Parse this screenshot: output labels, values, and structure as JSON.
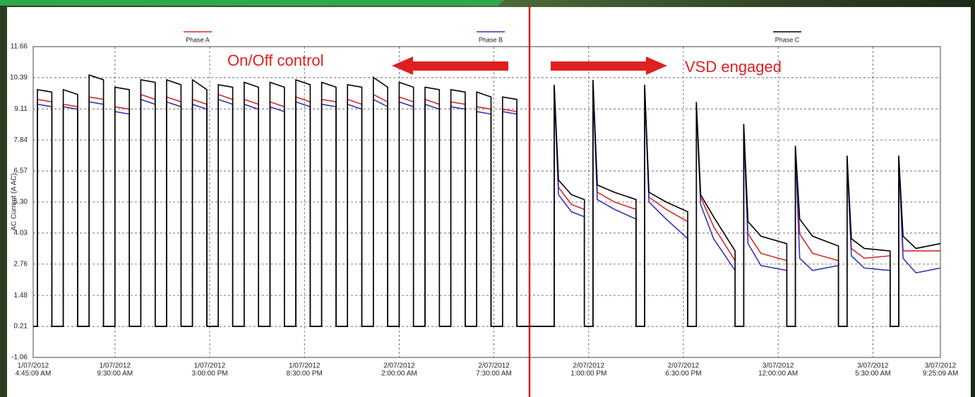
{
  "chart_data": {
    "type": "line",
    "ylabel": "AC Current (A AC)",
    "annotations": [
      "On/Off control",
      "VSD engaged"
    ],
    "annotation_color": "#e02020",
    "grid": true,
    "ylim": [
      -1.06,
      11.66
    ],
    "yticks": [
      -1.06,
      0.21,
      1.48,
      2.76,
      4.03,
      {
        "value": 5.3,
        "label": "5.30"
      },
      6.57,
      7.84,
      9.11,
      10.39,
      11.66
    ],
    "xlim": [
      "2012-07-01T04:45:09",
      "2012-07-03T09:25:09"
    ],
    "xticks": [
      {
        "value": "2012-07-01T04:45:09",
        "label": [
          "1/07/2012",
          "4:45:09 AM"
        ]
      },
      {
        "value": "2012-07-01T09:30:00",
        "label": [
          "1/07/2012",
          "9:30:00 AM"
        ]
      },
      {
        "value": "2012-07-01T15:00:00",
        "label": [
          "1/07/2012",
          "3:00:00 PM"
        ]
      },
      {
        "value": "2012-07-01T20:30:00",
        "label": [
          "1/07/2012",
          "8:30:00 PM"
        ]
      },
      {
        "value": "2012-07-02T02:00:00",
        "label": [
          "2/07/2012",
          "2:00:00 AM"
        ]
      },
      {
        "value": "2012-07-02T07:30:00",
        "label": [
          "2/07/2012",
          "7:30:00 AM"
        ]
      },
      {
        "value": "2012-07-02T13:00:00",
        "label": [
          "2/07/2012",
          "1:00:00 PM"
        ]
      },
      {
        "value": "2012-07-02T18:30:00",
        "label": [
          "2/07/2012",
          "6:30:00 PM"
        ]
      },
      {
        "value": "2012-07-03T00:00:00",
        "label": [
          "3/07/2012",
          "12:00:00 AM"
        ]
      },
      {
        "value": "2012-07-03T05:30:00",
        "label": [
          "3/07/2012",
          "5:30:00 AM"
        ]
      },
      {
        "value": "2012-07-03T09:25:09",
        "label": [
          "3/07/2012",
          "9:25:09 AM"
        ]
      }
    ],
    "x": [
      "2012-07-01T04:45:09",
      "2012-07-01T05:00",
      "2012-07-01T05:00",
      "2012-07-01T05:50",
      "2012-07-01T05:50",
      "2012-07-01T06:30",
      "2012-07-01T06:30",
      "2012-07-01T07:20",
      "2012-07-01T07:20",
      "2012-07-01T08:00",
      "2012-07-01T08:00",
      "2012-07-01T08:50",
      "2012-07-01T08:50",
      "2012-07-01T09:30",
      "2012-07-01T09:30",
      "2012-07-01T10:20",
      "2012-07-01T10:20",
      "2012-07-01T11:00",
      "2012-07-01T11:00",
      "2012-07-01T11:50",
      "2012-07-01T11:50",
      "2012-07-01T12:30",
      "2012-07-01T12:30",
      "2012-07-01T13:20",
      "2012-07-01T13:20",
      "2012-07-01T14:00",
      "2012-07-01T14:00",
      "2012-07-01T14:50",
      "2012-07-01T14:50",
      "2012-07-01T15:30",
      "2012-07-01T15:30",
      "2012-07-01T16:20",
      "2012-07-01T16:20",
      "2012-07-01T17:00",
      "2012-07-01T17:00",
      "2012-07-01T17:50",
      "2012-07-01T17:50",
      "2012-07-01T18:30",
      "2012-07-01T18:30",
      "2012-07-01T19:20",
      "2012-07-01T19:20",
      "2012-07-01T20:00",
      "2012-07-01T20:00",
      "2012-07-01T20:50",
      "2012-07-01T20:50",
      "2012-07-01T21:30",
      "2012-07-01T21:30",
      "2012-07-01T22:20",
      "2012-07-01T22:20",
      "2012-07-01T23:00",
      "2012-07-01T23:00",
      "2012-07-01T23:50",
      "2012-07-01T23:50",
      "2012-07-02T00:30",
      "2012-07-02T00:30",
      "2012-07-02T01:20",
      "2012-07-02T01:20",
      "2012-07-02T02:00",
      "2012-07-02T02:00",
      "2012-07-02T02:50",
      "2012-07-02T02:50",
      "2012-07-02T03:30",
      "2012-07-02T03:30",
      "2012-07-02T04:20",
      "2012-07-02T04:20",
      "2012-07-02T05:00",
      "2012-07-02T05:00",
      "2012-07-02T05:50",
      "2012-07-02T05:50",
      "2012-07-02T06:30",
      "2012-07-02T06:30",
      "2012-07-02T07:20",
      "2012-07-02T07:20",
      "2012-07-02T08:00",
      "2012-07-02T08:00",
      "2012-07-02T08:50",
      "2012-07-02T08:50",
      "2012-07-02T11:00",
      "2012-07-02T11:00",
      "2012-07-02T11:15",
      "2012-07-02T12:00",
      "2012-07-02T12:45",
      "2012-07-02T12:45",
      "2012-07-02T13:15",
      "2012-07-02T13:15",
      "2012-07-02T13:30",
      "2012-07-02T14:30",
      "2012-07-02T15:45",
      "2012-07-02T15:45",
      "2012-07-02T16:15",
      "2012-07-02T16:15",
      "2012-07-02T16:30",
      "2012-07-02T17:30",
      "2012-07-02T18:45",
      "2012-07-02T18:45",
      "2012-07-02T19:15",
      "2012-07-02T19:15",
      "2012-07-02T19:30",
      "2012-07-02T20:15",
      "2012-07-02T21:30",
      "2012-07-02T21:30",
      "2012-07-02T22:00",
      "2012-07-02T22:00",
      "2012-07-02T22:15",
      "2012-07-02T23:00",
      "2012-07-03T00:30",
      "2012-07-03T00:30",
      "2012-07-03T01:00",
      "2012-07-03T01:00",
      "2012-07-03T01:15",
      "2012-07-03T02:00",
      "2012-07-03T03:30",
      "2012-07-03T03:30",
      "2012-07-03T04:00",
      "2012-07-03T04:00",
      "2012-07-03T04:15",
      "2012-07-03T05:00",
      "2012-07-03T06:30",
      "2012-07-03T06:30",
      "2012-07-03T07:00",
      "2012-07-03T07:00",
      "2012-07-03T07:15",
      "2012-07-03T08:00",
      "2012-07-03T09:25:09"
    ],
    "series": [
      {
        "name": "Phase A",
        "color": "#d42a2a",
        "values": [
          0.21,
          0.21,
          9.5,
          9.4,
          0.21,
          0.21,
          9.3,
          9.2,
          0.21,
          0.21,
          9.6,
          9.5,
          0.21,
          0.21,
          9.2,
          9.1,
          0.21,
          0.21,
          9.7,
          9.5,
          0.21,
          0.21,
          9.6,
          9.4,
          0.21,
          0.21,
          9.5,
          9.3,
          0.21,
          0.21,
          9.7,
          9.5,
          0.21,
          0.21,
          9.5,
          9.3,
          0.21,
          0.21,
          9.4,
          9.2,
          0.21,
          0.21,
          9.6,
          9.4,
          0.21,
          0.21,
          9.5,
          9.4,
          0.21,
          0.21,
          9.5,
          9.3,
          0.21,
          0.21,
          9.7,
          9.4,
          0.21,
          0.21,
          9.6,
          9.4,
          0.21,
          0.21,
          9.5,
          9.3,
          0.21,
          0.21,
          9.4,
          9.3,
          0.21,
          0.21,
          9.2,
          9.1,
          0.21,
          0.21,
          9.1,
          9.0,
          0.21,
          0.21,
          10.0,
          5.9,
          5.2,
          5.0,
          0.21,
          0.21,
          10.2,
          5.7,
          5.3,
          5.0,
          0.21,
          0.21,
          10.0,
          5.5,
          5.0,
          4.5,
          0.21,
          0.21,
          9.3,
          5.5,
          4.3,
          2.9,
          0.21,
          0.21,
          8.4,
          4.0,
          3.2,
          2.9,
          0.21,
          0.21,
          7.5,
          4.0,
          3.2,
          2.9,
          0.21,
          0.21,
          7.1,
          3.4,
          3.0,
          3.1,
          0.21,
          0.21,
          7.1,
          3.3,
          3.3,
          3.3
        ]
      },
      {
        "name": "Phase B",
        "color": "#3434b4",
        "values": [
          0.21,
          0.21,
          9.3,
          9.2,
          0.21,
          0.21,
          9.2,
          9.1,
          0.21,
          0.21,
          9.4,
          9.3,
          0.21,
          0.21,
          9.0,
          8.9,
          0.21,
          0.21,
          9.5,
          9.3,
          0.21,
          0.21,
          9.4,
          9.2,
          0.21,
          0.21,
          9.3,
          9.1,
          0.21,
          0.21,
          9.5,
          9.3,
          0.21,
          0.21,
          9.3,
          9.1,
          0.21,
          0.21,
          9.2,
          9.0,
          0.21,
          0.21,
          9.4,
          9.2,
          0.21,
          0.21,
          9.3,
          9.2,
          0.21,
          0.21,
          9.3,
          9.1,
          0.21,
          0.21,
          9.5,
          9.2,
          0.21,
          0.21,
          9.4,
          9.2,
          0.21,
          0.21,
          9.3,
          9.1,
          0.21,
          0.21,
          9.2,
          9.1,
          0.21,
          0.21,
          9.0,
          8.9,
          0.21,
          0.21,
          9.0,
          8.9,
          0.21,
          0.21,
          9.9,
          5.6,
          4.9,
          4.7,
          0.21,
          0.21,
          10.1,
          5.4,
          5.0,
          4.6,
          0.21,
          0.21,
          9.9,
          5.3,
          4.6,
          3.8,
          0.21,
          0.21,
          9.2,
          5.2,
          3.8,
          2.5,
          0.21,
          0.21,
          8.3,
          3.6,
          2.7,
          2.5,
          0.21,
          0.21,
          7.4,
          3.0,
          2.5,
          2.7,
          0.21,
          0.21,
          7.0,
          3.1,
          2.6,
          2.5,
          0.21,
          0.21,
          7.0,
          3.0,
          2.4,
          2.6
        ]
      },
      {
        "name": "Phase C",
        "color": "#000000",
        "values": [
          0.21,
          0.21,
          9.9,
          9.8,
          0.21,
          0.21,
          9.9,
          9.7,
          0.21,
          0.21,
          10.5,
          10.3,
          0.21,
          0.21,
          10.0,
          9.9,
          0.21,
          0.21,
          10.3,
          10.2,
          0.21,
          0.21,
          10.3,
          10.1,
          0.21,
          0.21,
          10.3,
          9.9,
          0.21,
          0.21,
          10.1,
          10.0,
          0.21,
          0.21,
          10.2,
          10.0,
          0.21,
          0.21,
          10.2,
          10.0,
          0.21,
          0.21,
          10.3,
          10.1,
          0.21,
          0.21,
          10.2,
          10.0,
          0.21,
          0.21,
          10.1,
          10.0,
          0.21,
          0.21,
          10.4,
          10.0,
          0.21,
          0.21,
          10.2,
          10.0,
          0.21,
          0.21,
          10.0,
          9.9,
          0.21,
          0.21,
          9.9,
          9.8,
          0.21,
          0.21,
          9.8,
          9.6,
          0.21,
          0.21,
          9.6,
          9.5,
          0.21,
          0.21,
          10.1,
          6.2,
          5.6,
          5.4,
          0.21,
          0.21,
          10.3,
          6.0,
          5.7,
          5.4,
          0.21,
          0.21,
          10.1,
          5.7,
          5.3,
          4.9,
          0.21,
          0.21,
          9.4,
          5.6,
          4.7,
          3.3,
          0.21,
          0.21,
          8.5,
          4.5,
          3.9,
          3.6,
          0.21,
          0.21,
          7.6,
          4.6,
          3.9,
          3.5,
          0.21,
          0.21,
          7.2,
          3.8,
          3.4,
          3.3,
          0.21,
          0.21,
          7.2,
          3.9,
          3.4,
          3.6
        ]
      }
    ]
  }
}
